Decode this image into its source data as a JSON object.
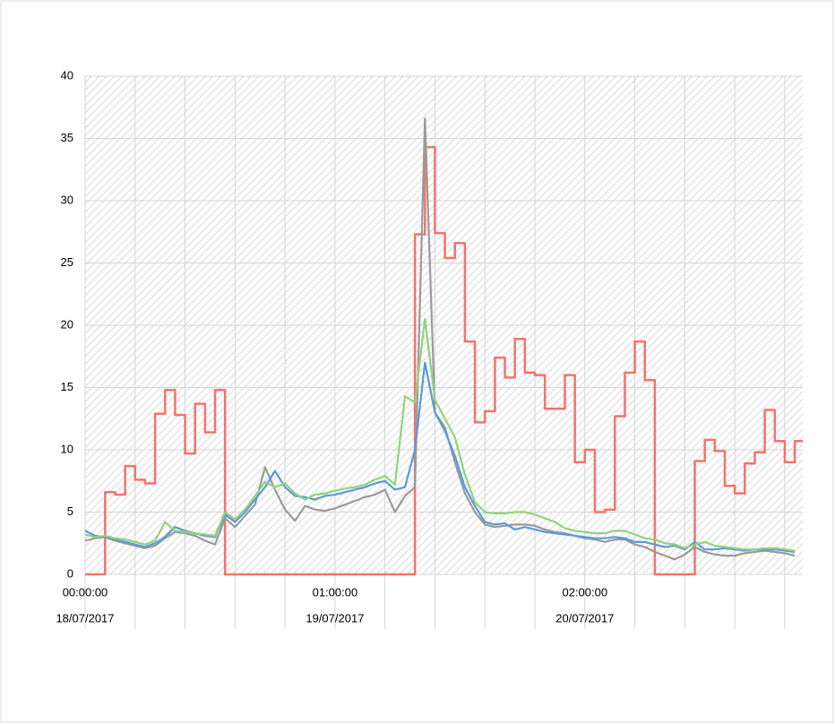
{
  "chart_data": {
    "type": "line",
    "x": [
      0,
      1,
      2,
      3,
      4,
      5,
      6,
      7,
      8,
      9,
      10,
      11,
      12,
      13,
      14,
      15,
      16,
      17,
      18,
      19,
      20,
      21,
      22,
      23,
      24,
      25,
      26,
      27,
      28,
      29,
      30,
      31,
      32,
      33,
      34,
      35,
      36,
      37,
      38,
      39,
      40,
      41,
      42,
      43,
      44,
      45,
      46,
      47,
      48,
      49,
      50,
      51,
      52,
      53,
      54,
      55,
      56,
      57,
      58,
      59,
      60,
      61,
      62,
      63,
      64,
      65,
      66,
      67,
      68,
      69,
      70,
      71
    ],
    "xlim": [
      0,
      71.8
    ],
    "xticks": [
      {
        "value": 0,
        "label": "00:00:00"
      },
      {
        "value": 25,
        "label": "01:00:00"
      },
      {
        "value": 50,
        "label": "02:00:00"
      }
    ],
    "xticks_secondary": [
      {
        "value": 0,
        "label": "18/07/2017"
      },
      {
        "value": 25,
        "label": "19/07/2017"
      },
      {
        "value": 50,
        "label": "20/07/2017"
      }
    ],
    "xgrid": [
      0,
      5,
      10,
      15,
      20,
      25,
      30,
      35,
      40,
      45,
      50,
      55,
      60,
      65,
      70
    ],
    "ylim": [
      0,
      40
    ],
    "yticks": [
      0,
      5,
      10,
      15,
      20,
      25,
      30,
      35,
      40
    ],
    "grid": true,
    "series": [
      {
        "color": "#f4736c",
        "step": true,
        "values": [
          0,
          0,
          6.6,
          6.4,
          8.7,
          7.6,
          7.3,
          12.9,
          14.8,
          12.8,
          9.7,
          13.7,
          11.4,
          14.8,
          0,
          0,
          0,
          0,
          0,
          0,
          0,
          0,
          0,
          0,
          0,
          0,
          0,
          0,
          0,
          0,
          0,
          0,
          0,
          27.3,
          34.3,
          27.4,
          25.4,
          26.6,
          18.7,
          12.2,
          13.1,
          17.4,
          15.8,
          18.9,
          16.2,
          16.0,
          13.3,
          13.3,
          16.0,
          9.0,
          10.0,
          5.0,
          5.2,
          12.7,
          16.2,
          18.7,
          15.6,
          0,
          0,
          0,
          0,
          9.1,
          10.8,
          9.9,
          7.1,
          6.5,
          8.9,
          9.8,
          13.2,
          10.7,
          9.0,
          10.7
        ]
      },
      {
        "color": "#9a9a9a",
        "values": [
          2.7,
          2.9,
          3.0,
          2.7,
          2.5,
          2.3,
          2.1,
          2.3,
          2.9,
          3.4,
          3.3,
          3.1,
          2.7,
          2.4,
          4.5,
          3.8,
          4.7,
          5.6,
          8.6,
          6.8,
          5.2,
          4.3,
          5.5,
          5.2,
          5.1,
          5.3,
          5.6,
          5.9,
          6.2,
          6.4,
          6.8,
          5.0,
          6.3,
          7.0,
          36.6,
          13.0,
          11.8,
          9.0,
          6.5,
          5.0,
          4.0,
          3.8,
          3.9,
          4.0,
          4.0,
          3.9,
          3.6,
          3.4,
          3.3,
          3.1,
          2.9,
          2.8,
          2.6,
          2.8,
          2.8,
          2.4,
          2.2,
          1.8,
          1.5,
          1.2,
          1.6,
          2.2,
          1.8,
          1.6,
          1.5,
          1.5,
          1.7,
          1.8,
          1.9,
          1.8,
          1.7,
          1.5
        ]
      },
      {
        "color": "#5b9bd5",
        "values": [
          3.5,
          3.1,
          3.0,
          2.8,
          2.6,
          2.4,
          2.2,
          2.5,
          3.0,
          3.8,
          3.5,
          3.3,
          3.1,
          3.0,
          4.8,
          4.2,
          5.0,
          6.0,
          7.0,
          8.3,
          7.0,
          6.3,
          6.2,
          6.0,
          6.3,
          6.4,
          6.6,
          6.8,
          7.0,
          7.3,
          7.5,
          6.8,
          7.0,
          10.0,
          17.0,
          13.0,
          11.5,
          9.5,
          7.0,
          5.5,
          4.2,
          4.0,
          4.1,
          3.6,
          3.8,
          3.6,
          3.4,
          3.3,
          3.2,
          3.1,
          3.0,
          2.9,
          2.9,
          3.0,
          2.9,
          2.6,
          2.6,
          2.4,
          2.2,
          2.3,
          2.0,
          2.6,
          2.0,
          2.0,
          2.1,
          2.0,
          1.9,
          2.0,
          2.0,
          2.0,
          1.9,
          1.8
        ]
      },
      {
        "color": "#92d27e",
        "values": [
          3.2,
          3.0,
          3.1,
          2.9,
          2.8,
          2.6,
          2.4,
          2.7,
          4.2,
          3.5,
          3.4,
          3.3,
          3.2,
          3.1,
          5.0,
          4.4,
          5.2,
          6.3,
          7.4,
          7.0,
          7.3,
          6.5,
          6.0,
          6.4,
          6.5,
          6.7,
          6.9,
          7.0,
          7.2,
          7.6,
          7.9,
          7.2,
          14.3,
          13.8,
          20.5,
          14.0,
          12.5,
          11.0,
          8.0,
          5.8,
          5.0,
          4.9,
          4.9,
          5.0,
          5.0,
          4.8,
          4.5,
          4.2,
          3.7,
          3.5,
          3.4,
          3.3,
          3.3,
          3.5,
          3.5,
          3.2,
          2.9,
          2.8,
          2.5,
          2.4,
          2.1,
          2.4,
          2.6,
          2.3,
          2.2,
          2.1,
          2.0,
          2.0,
          2.1,
          2.1,
          2.0,
          1.9
        ]
      }
    ]
  }
}
